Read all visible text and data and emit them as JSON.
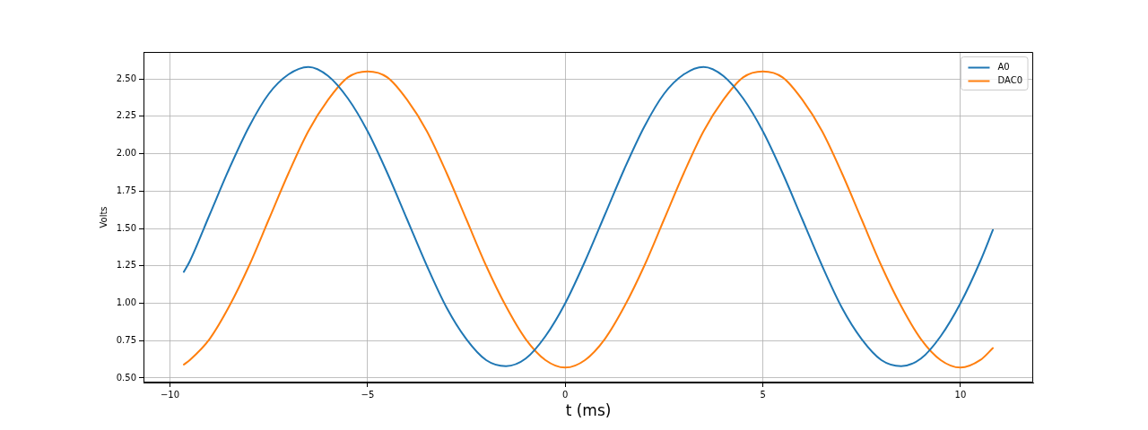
{
  "chart_data": {
    "type": "line",
    "xlabel": "t (ms)",
    "ylabel": "Volts",
    "x": [
      -9.65,
      -9.5,
      -9.0,
      -8.5,
      -8.0,
      -7.5,
      -7.0,
      -6.5,
      -6.0,
      -5.5,
      -5.0,
      -4.5,
      -4.0,
      -3.5,
      -3.0,
      -2.5,
      -2.0,
      -1.5,
      -1.0,
      -0.5,
      0,
      0.5,
      1.0,
      1.5,
      2.0,
      2.5,
      3.0,
      3.5,
      4.0,
      4.5,
      5.0,
      5.5,
      6.0,
      6.5,
      7.0,
      7.5,
      8.0,
      8.5,
      9.0,
      9.5,
      10.0,
      10.5,
      10.82
    ],
    "series": [
      {
        "name": "A0",
        "color": "#1f77b4",
        "values": [
          1.21,
          1.28,
          1.59,
          1.9,
          2.18,
          2.4,
          2.53,
          2.58,
          2.52,
          2.37,
          2.15,
          1.87,
          1.56,
          1.25,
          0.97,
          0.76,
          0.62,
          0.58,
          0.63,
          0.78,
          1.0,
          1.28,
          1.59,
          1.9,
          2.18,
          2.4,
          2.53,
          2.58,
          2.52,
          2.37,
          2.15,
          1.87,
          1.56,
          1.25,
          0.97,
          0.76,
          0.62,
          0.58,
          0.63,
          0.78,
          1.0,
          1.28,
          1.49
        ]
      },
      {
        "name": "DAC0",
        "color": "#ff7f0e",
        "values": [
          0.59,
          0.62,
          0.76,
          0.98,
          1.25,
          1.56,
          1.87,
          2.15,
          2.36,
          2.51,
          2.55,
          2.51,
          2.36,
          2.15,
          1.87,
          1.56,
          1.25,
          0.98,
          0.76,
          0.62,
          0.57,
          0.62,
          0.76,
          0.98,
          1.25,
          1.56,
          1.87,
          2.15,
          2.36,
          2.51,
          2.55,
          2.51,
          2.36,
          2.15,
          1.87,
          1.56,
          1.25,
          0.98,
          0.76,
          0.62,
          0.57,
          0.62,
          0.7
        ]
      }
    ],
    "xlim": [
      -10.67,
      11.84
    ],
    "ylim": [
      0.47,
      2.68
    ],
    "xticks": [
      {
        "value": -10,
        "label": "−10"
      },
      {
        "value": -5,
        "label": "−5"
      },
      0,
      5,
      10
    ],
    "yticks": [
      {
        "value": 0.5,
        "label": "0.50"
      },
      0.75,
      {
        "value": 1.0,
        "label": "1.00"
      },
      1.25,
      {
        "value": 1.5,
        "label": "1.50"
      },
      1.75,
      {
        "value": 2.0,
        "label": "2.00"
      },
      2.25,
      {
        "value": 2.5,
        "label": "2.50"
      }
    ],
    "grid": true,
    "legend": "top right"
  }
}
